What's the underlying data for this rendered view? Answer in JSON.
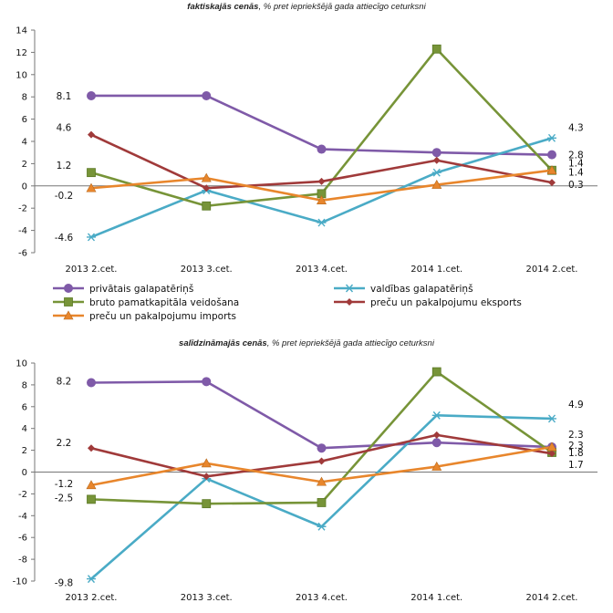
{
  "chart_data": [
    {
      "type": "line",
      "title_bold": "faktiskajās cenās",
      "title_rest": ", % pret iepriekšējā gada attiecīgo ceturksni",
      "categories": [
        "2013 2.cet.",
        "2013 3.cet.",
        "2013 4.cet.",
        "2014 1.cet.",
        "2014 2.cet."
      ],
      "ylim": [
        -6,
        14
      ],
      "yticks": [
        -6,
        -4,
        -2,
        0,
        2,
        4,
        6,
        8,
        10,
        12,
        14
      ],
      "grid": false,
      "legend": "bottom",
      "series": [
        {
          "name": "privātais galapatēriņš",
          "color": "#7f5aa8",
          "marker": "circle",
          "values": [
            8.1,
            8.1,
            3.3,
            3.0,
            2.8
          ]
        },
        {
          "name": "valdības galapatēriņš",
          "color": "#4aabc6",
          "marker": "star",
          "values": [
            -4.6,
            -0.4,
            -3.3,
            1.2,
            4.3
          ]
        },
        {
          "name": "bruto pamatkapitāla veidošana",
          "color": "#779438",
          "marker": "square",
          "values": [
            1.2,
            -1.8,
            -0.7,
            12.3,
            1.4
          ]
        },
        {
          "name": "preču un pakalpojumu eksports",
          "color": "#a03a3a",
          "marker": "diamond",
          "values": [
            4.6,
            -0.2,
            0.4,
            2.3,
            0.3
          ]
        },
        {
          "name": "preču un pakalpojumu imports",
          "color": "#e8862c",
          "marker": "triangle",
          "values": [
            -0.2,
            0.7,
            -1.3,
            0.1,
            1.4
          ]
        }
      ],
      "data_labels": [
        {
          "text": "8.1"
        },
        {
          "text": "4.6"
        },
        {
          "text": "1.2"
        },
        {
          "text": "-0.2"
        },
        {
          "text": "-4.6"
        },
        {
          "text": "4.3"
        },
        {
          "text": "2.8"
        },
        {
          "text": "1.4"
        },
        {
          "text": "1.4"
        },
        {
          "text": "0.3"
        }
      ]
    },
    {
      "type": "line",
      "title_bold": "salīdzināmajās cenās",
      "title_rest": ", % pret iepriekšējā gada attiecīgo ceturksni",
      "categories": [
        "2013 2.cet.",
        "2013 3.cet.",
        "2013 4.cet.",
        "2014 1.cet.",
        "2014 2.cet."
      ],
      "ylim": [
        -10,
        10
      ],
      "yticks": [
        -10,
        -8,
        -6,
        -4,
        -2,
        0,
        2,
        4,
        6,
        8,
        10
      ],
      "grid": false,
      "legend": "none",
      "series": [
        {
          "name": "privātais galapatēriņš",
          "color": "#7f5aa8",
          "marker": "circle",
          "values": [
            8.2,
            8.3,
            2.2,
            2.7,
            2.3
          ]
        },
        {
          "name": "valdības galapatēriņš",
          "color": "#4aabc6",
          "marker": "star",
          "values": [
            -9.8,
            -0.6,
            -5.0,
            5.2,
            4.9
          ]
        },
        {
          "name": "bruto pamatkapitāla veidošana",
          "color": "#779438",
          "marker": "square",
          "values": [
            -2.5,
            -2.9,
            -2.8,
            9.2,
            1.8
          ]
        },
        {
          "name": "preču un pakalpojumu eksports",
          "color": "#a03a3a",
          "marker": "diamond",
          "values": [
            2.2,
            -0.4,
            1.0,
            3.4,
            1.7
          ]
        },
        {
          "name": "preču un pakalpojumu imports",
          "color": "#e8862c",
          "marker": "triangle",
          "values": [
            -1.2,
            0.8,
            -0.9,
            0.5,
            2.3
          ]
        }
      ],
      "data_labels": [
        {
          "text": "8.2"
        },
        {
          "text": "2.2"
        },
        {
          "text": "-1.2"
        },
        {
          "text": "-2.5"
        },
        {
          "text": "-9.8"
        },
        {
          "text": "4.9"
        },
        {
          "text": "2.3"
        },
        {
          "text": "2.3"
        },
        {
          "text": "1.8"
        },
        {
          "text": "1.7"
        }
      ]
    }
  ]
}
